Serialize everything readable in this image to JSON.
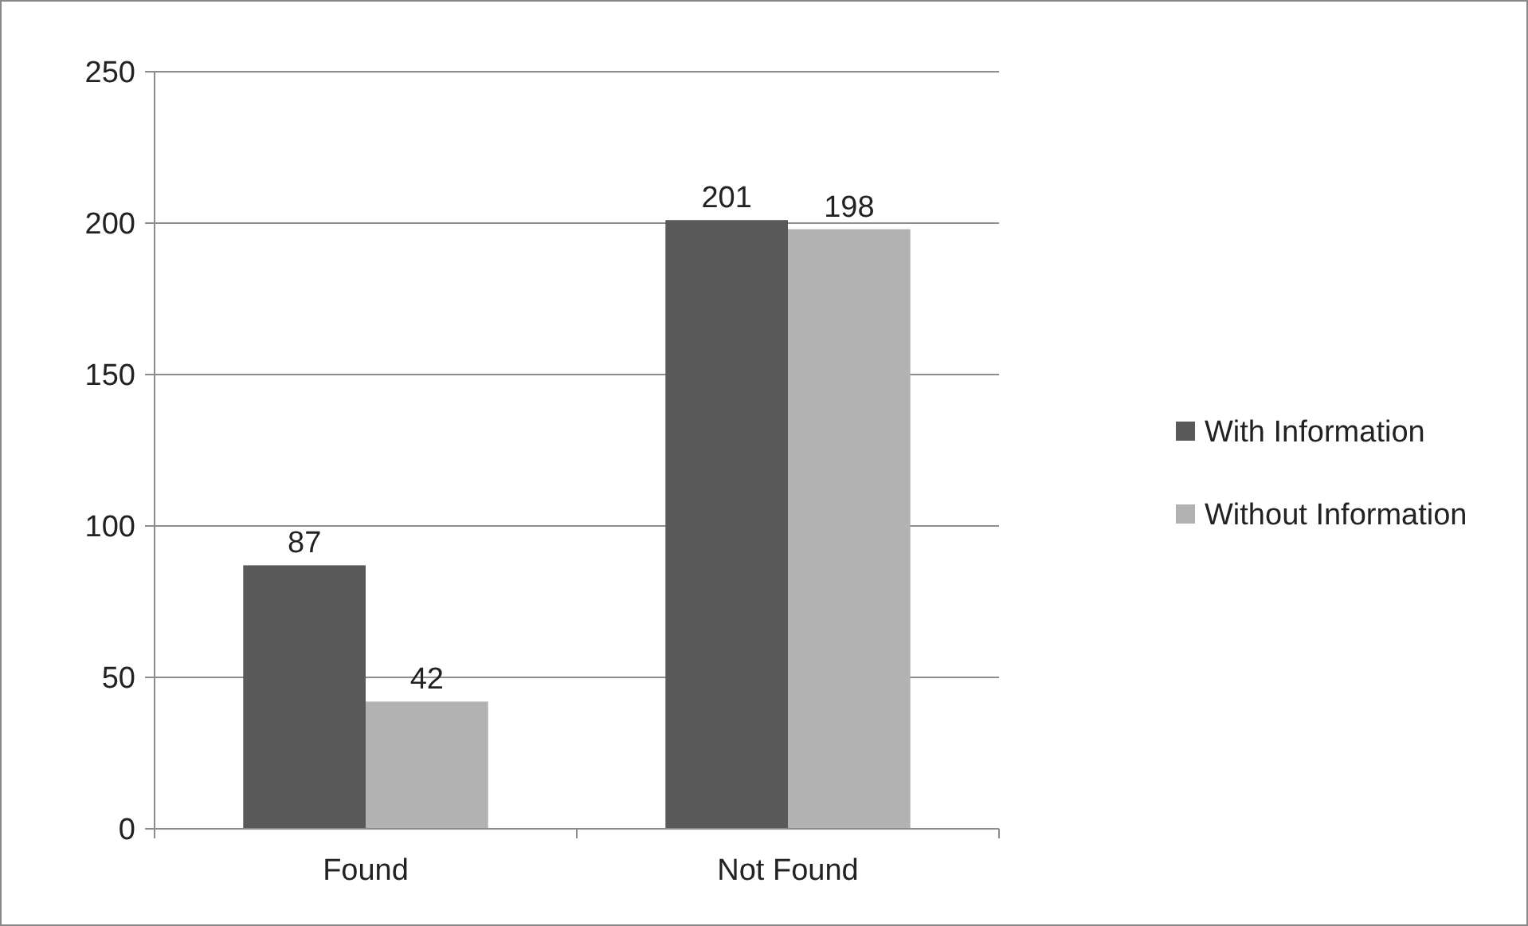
{
  "chart_data": {
    "type": "bar",
    "categories": [
      "Found",
      "Not Found"
    ],
    "series": [
      {
        "name": "With Information",
        "color": "#595959",
        "values": [
          87,
          201
        ]
      },
      {
        "name": "Without Information",
        "color": "#b2b2b2",
        "values": [
          42,
          198
        ]
      }
    ],
    "ylim": [
      0,
      250
    ],
    "yticks": [
      0,
      50,
      100,
      150,
      200,
      250
    ],
    "grid": "y",
    "legend": "right",
    "data_labels": true
  }
}
